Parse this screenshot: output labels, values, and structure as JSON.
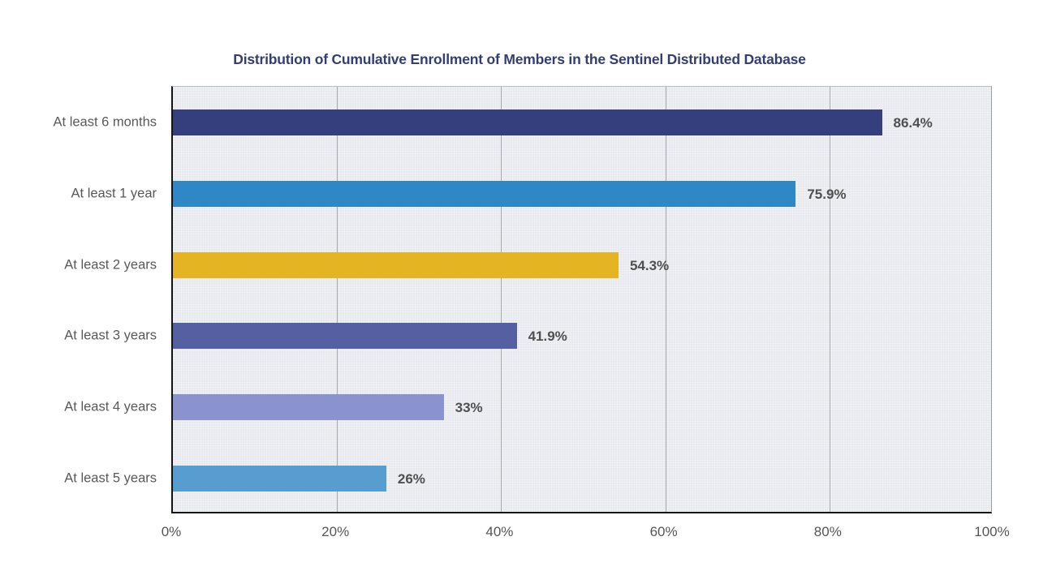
{
  "page": {
    "background": "#ffffff"
  },
  "chart_data": {
    "type": "bar",
    "orientation": "horizontal",
    "title": "Distribution of Cumulative Enrollment of Members in the Sentinel Distributed Database",
    "categories": [
      "At least 6 months",
      "At least 1 year",
      "At least 2 years",
      "At least 3 years",
      "At least 4 years",
      "At least 5 years"
    ],
    "values": [
      86.4,
      75.9,
      54.3,
      41.9,
      33,
      26
    ],
    "value_labels": [
      "86.4%",
      "75.9%",
      "54.3%",
      "41.9%",
      "33%",
      "26%"
    ],
    "bar_colors": [
      "#353f7d",
      "#2e88c5",
      "#e5b422",
      "#5560a3",
      "#8b93ce",
      "#589dd0"
    ],
    "x_ticks": [
      "0%",
      "20%",
      "40%",
      "60%",
      "80%",
      "100%"
    ],
    "x_tick_values": [
      0,
      20,
      40,
      60,
      80,
      100
    ],
    "xlim": [
      0,
      100
    ],
    "xlabel": "",
    "ylabel": "",
    "grid": "vertical-only",
    "legend": "none",
    "title_color": "#333d76",
    "plot_background": "#e8eaf0",
    "gridline_color": "#a9a9a9",
    "axis_label_color": "#595959",
    "value_label_color": "#4f4f4f"
  }
}
